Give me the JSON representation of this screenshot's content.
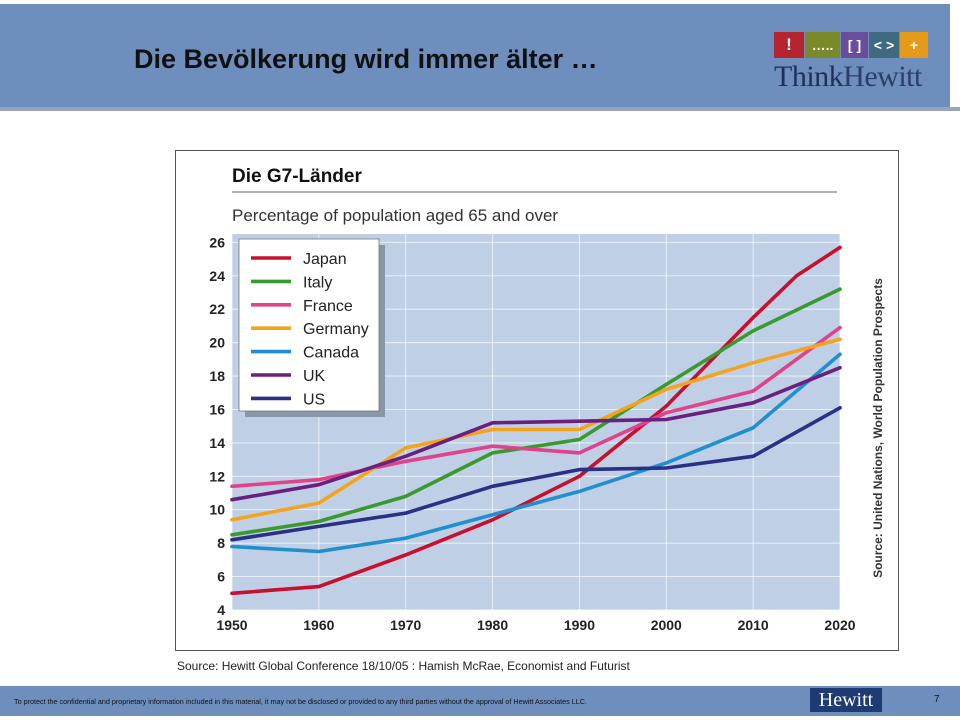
{
  "slide": {
    "title": "Die Bevölkerung wird immer älter …",
    "logo_tiles": [
      "!",
      "…..",
      "[ ]",
      "< >",
      "+"
    ],
    "logo_word_think": "Think",
    "logo_word_hewitt": "Hewitt",
    "source": "Source: Hewitt Global Conference 18/10/05 : Hamish McRae, Economist and Futurist",
    "disclaimer": "To protect the confidential and proprietary information included in this material, it may not be disclosed or provided to any third parties without the approval of Hewitt Associates LLC.",
    "footer_brand": "Hewitt",
    "page_number": "7"
  },
  "chart_data": {
    "type": "line",
    "heading": "Die G7-Länder",
    "title": "Percentage of population aged 65 and over",
    "side_label": "Source: United Nations, World Population Prospects",
    "x": [
      1950,
      1960,
      1970,
      1980,
      1990,
      2000,
      2010,
      2020
    ],
    "x_tick_labels": [
      "1950",
      "1960",
      "1970",
      "1980",
      "1990",
      "2000",
      "2010",
      "2020"
    ],
    "y_ticks": [
      4,
      6,
      8,
      10,
      12,
      14,
      16,
      18,
      20,
      22,
      24,
      26
    ],
    "ylim": [
      4,
      26.5
    ],
    "xlim": [
      1950,
      2020
    ],
    "grid": true,
    "legend_position": "top-left",
    "plot_background": "#bfd0e6",
    "series": [
      {
        "name": "Japan",
        "color": "#c8102e",
        "values": [
          5.0,
          5.4,
          7.3,
          9.4,
          12.0,
          16.2,
          21.5,
          25.7
        ],
        "extra": [
          [
            2015,
            24.0
          ]
        ]
      },
      {
        "name": "Italy",
        "color": "#3a9a2f",
        "values": [
          8.5,
          9.3,
          10.8,
          13.4,
          14.2,
          17.5,
          20.7,
          23.2
        ]
      },
      {
        "name": "France",
        "color": "#e0428c",
        "values": [
          11.4,
          11.8,
          12.9,
          13.8,
          13.4,
          15.8,
          17.1,
          20.9
        ]
      },
      {
        "name": "Germany",
        "color": "#f4a31b",
        "values": [
          9.4,
          10.4,
          13.7,
          14.8,
          14.8,
          17.2,
          18.8,
          20.2
        ]
      },
      {
        "name": "Canada",
        "color": "#1f8fd0",
        "values": [
          7.8,
          7.5,
          8.3,
          9.7,
          11.1,
          12.8,
          14.9,
          19.3
        ]
      },
      {
        "name": "UK",
        "color": "#6b1f7e",
        "values": [
          10.6,
          11.5,
          13.2,
          15.2,
          15.3,
          15.4,
          16.4,
          18.5
        ]
      },
      {
        "name": "US",
        "color": "#2b2f86",
        "values": [
          8.2,
          9.0,
          9.8,
          11.4,
          12.4,
          12.5,
          13.2,
          16.1
        ]
      }
    ]
  }
}
